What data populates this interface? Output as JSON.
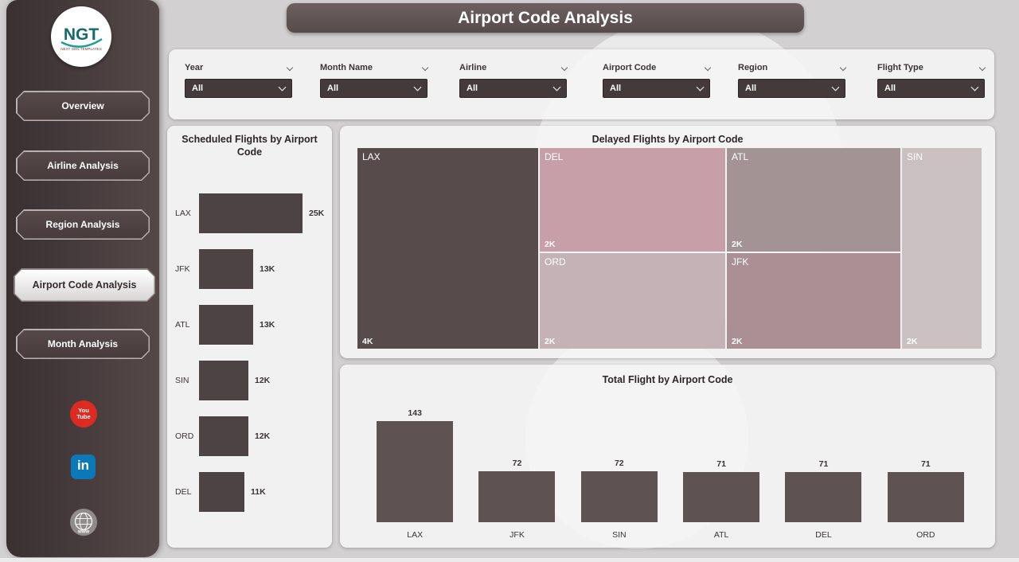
{
  "page_title": "Airport Code Analysis",
  "colors": {
    "sidebar": "#493d3e",
    "title_bar": "#5e5152",
    "panel_bg": "#f5f4f4"
  },
  "sidebar": {
    "logo": {
      "text": "NGT",
      "subtext": "NEXT GEN TEMPLATES"
    },
    "items": [
      {
        "label": "Overview",
        "active": false
      },
      {
        "label": "Airline Analysis",
        "active": false
      },
      {
        "label": "Region Analysis",
        "active": false
      },
      {
        "label": "Airport Code Analysis",
        "active": true
      },
      {
        "label": "Month Analysis",
        "active": false
      }
    ],
    "social": {
      "youtube": "You Tube",
      "linkedin": "in",
      "web": "www"
    }
  },
  "filters": [
    {
      "label": "Year",
      "value": "All"
    },
    {
      "label": "Month Name",
      "value": "All"
    },
    {
      "label": "Airline",
      "value": "All"
    },
    {
      "label": "Airport Code",
      "value": "All"
    },
    {
      "label": "Region",
      "value": "All"
    },
    {
      "label": "Flight Type",
      "value": "All"
    }
  ],
  "chart_data": [
    {
      "type": "bar",
      "orientation": "horizontal",
      "title": "Scheduled Flights by Airport Code",
      "categories": [
        "LAX",
        "JFK",
        "ATL",
        "SIN",
        "ORD",
        "DEL"
      ],
      "values": [
        25,
        13,
        13,
        12,
        12,
        11
      ],
      "value_labels": [
        "25K",
        "13K",
        "13K",
        "12K",
        "12K",
        "11K"
      ],
      "xlim": [
        0,
        25
      ],
      "bar_color": "#4e4344",
      "grid": false
    },
    {
      "type": "treemap",
      "title": "Delayed Flights by Airport Code",
      "items": [
        {
          "code": "LAX",
          "value": 4,
          "value_label": "4K",
          "color": "#574b4c"
        },
        {
          "code": "DEL",
          "value": 2,
          "value_label": "2K",
          "color": "#c79fa8"
        },
        {
          "code": "ATL",
          "value": 2,
          "value_label": "2K",
          "color": "#a39394"
        },
        {
          "code": "SIN",
          "value": 2,
          "value_label": "2K",
          "color": "#cbc0c1"
        },
        {
          "code": "ORD",
          "value": 2,
          "value_label": "2K",
          "color": "#c5b2b6"
        },
        {
          "code": "JFK",
          "value": 2,
          "value_label": "2K",
          "color": "#aa9095"
        }
      ]
    },
    {
      "type": "bar",
      "orientation": "vertical",
      "title": "Total Flight by Airport Code",
      "categories": [
        "LAX",
        "JFK",
        "SIN",
        "ATL",
        "DEL",
        "ORD"
      ],
      "values": [
        143,
        72,
        72,
        71,
        71,
        71
      ],
      "ylim": [
        0,
        143
      ],
      "bar_color": "#5e5253",
      "grid": false
    }
  ]
}
